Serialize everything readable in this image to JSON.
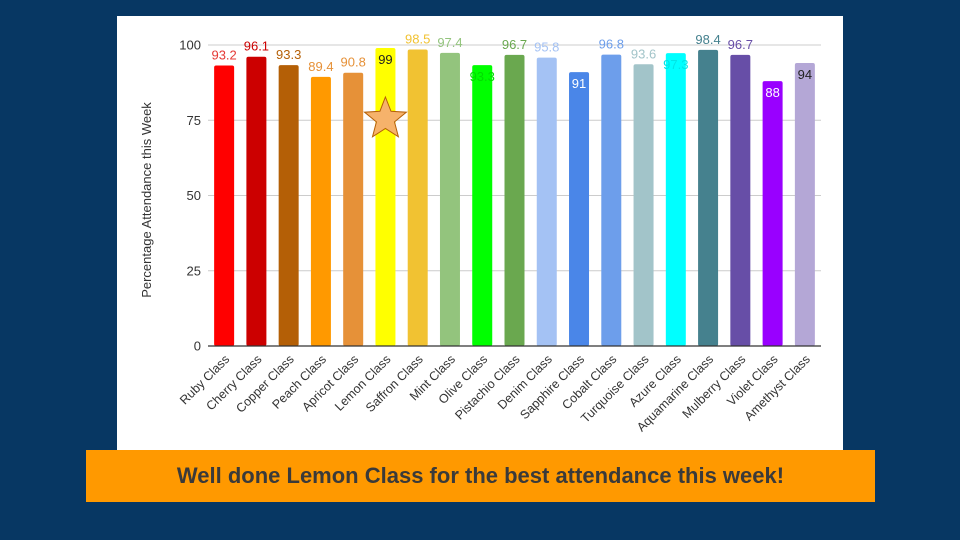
{
  "banner": {
    "text": "Well done Lemon Class for the best attendance this week!"
  },
  "highlight": {
    "category": "Lemon Class",
    "icon": "star-icon",
    "color": "#f6b26b"
  },
  "chart_data": {
    "type": "bar",
    "title": "",
    "xlabel": "",
    "ylabel": "Percentage Attendance this Week",
    "ylim": [
      0,
      100
    ],
    "yticks": [
      0,
      25,
      50,
      75,
      100
    ],
    "grid": true,
    "legend": "none",
    "categories": [
      "Ruby Class",
      "Cherry Class",
      "Copper Class",
      "Peach Class",
      "Apricot Class",
      "Lemon Class",
      "Saffron Class",
      "Mint Class",
      "Olive Class",
      "Pistachio Class",
      "Denim Class",
      "Sapphire Class",
      "Cobalt Class",
      "Turquoise Class",
      "Azure Class",
      "Aquamarine Class",
      "Mulberry Class",
      "Violet Class",
      "Amethyst Class"
    ],
    "values": [
      93.2,
      96.1,
      93.3,
      89.4,
      90.8,
      99,
      98.5,
      97.4,
      93.3,
      96.7,
      95.8,
      91,
      96.8,
      93.6,
      97.3,
      98.4,
      96.7,
      88,
      94
    ],
    "data_labels": [
      "93.2",
      "96.1",
      "93.3",
      "89.4",
      "90.8",
      "99",
      "98.5",
      "97.4",
      "93.3",
      "96.7",
      "95.8",
      "91",
      "96.8",
      "93.6",
      "97.3",
      "98.4",
      "96.7",
      "88",
      "94"
    ],
    "colors": [
      "#ff0000",
      "#cc0000",
      "#b45f06",
      "#ff9900",
      "#e69138",
      "#ffff00",
      "#f1c232",
      "#93c47d",
      "#00ff00",
      "#6aa84f",
      "#a4c2f4",
      "#4a86e8",
      "#6d9eeb",
      "#a2c4c9",
      "#00ffff",
      "#45818e",
      "#674ea7",
      "#9900ff",
      "#b4a7d6"
    ],
    "label_colors": [
      "#e53935",
      "#cc0000",
      "#b45f06",
      "#e69138",
      "#e69138",
      "#222222",
      "#f1c232",
      "#93c47d",
      "#00dd00",
      "#6aa84f",
      "#a4c2f4",
      "#ffffff",
      "#6d9eeb",
      "#a2c4c9",
      "#00e5e5",
      "#45818e",
      "#674ea7",
      "#ffffff",
      "#222222"
    ],
    "label_inside": [
      false,
      false,
      false,
      false,
      false,
      true,
      false,
      false,
      true,
      false,
      false,
      true,
      false,
      false,
      true,
      false,
      false,
      true,
      true
    ]
  }
}
